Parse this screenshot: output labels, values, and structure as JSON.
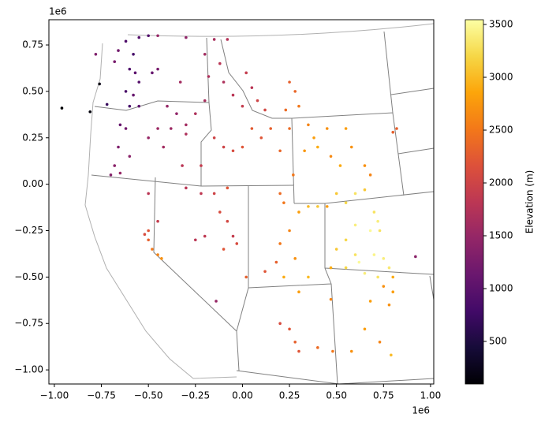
{
  "chart_data": {
    "type": "scatter",
    "xlim": [
      -1.029,
      1.017
    ],
    "ylim": [
      -1.076,
      0.886
    ],
    "xticks": [
      {
        "value": -1.0,
        "label": "−1.00"
      },
      {
        "value": -0.75,
        "label": "−0.75"
      },
      {
        "value": -0.5,
        "label": "−0.50"
      },
      {
        "value": -0.25,
        "label": "−0.25"
      },
      {
        "value": 0,
        "label": "0.00"
      },
      {
        "value": 0.25,
        "label": "0.25"
      },
      {
        "value": 0.5,
        "label": "0.50"
      },
      {
        "value": 0.75,
        "label": "0.75"
      },
      {
        "value": 1.0,
        "label": "1.00"
      }
    ],
    "yticks": [
      {
        "value": -1.0,
        "label": "−1.00"
      },
      {
        "value": -0.75,
        "label": "−0.75"
      },
      {
        "value": -0.5,
        "label": "−0.50"
      },
      {
        "value": -0.25,
        "label": "−0.25"
      },
      {
        "value": 0,
        "label": "0.00"
      },
      {
        "value": 0.25,
        "label": "0.25"
      },
      {
        "value": 0.5,
        "label": "0.50"
      },
      {
        "value": 0.75,
        "label": "0.75"
      }
    ],
    "x_offset_label": "1e6",
    "y_offset_label": "1e6",
    "colormap": "inferno",
    "clim": [
      97,
      3545
    ],
    "cticks": [
      500,
      1000,
      1500,
      2000,
      2500,
      3000,
      3500
    ],
    "colorbar_label": "Elevation (m)",
    "series": [
      {
        "x": [
          -0.96,
          -0.81,
          -0.76,
          -0.72,
          -0.62,
          -0.55,
          -0.5,
          -0.58,
          -0.6,
          -0.57,
          -0.55,
          -0.62,
          -0.58,
          -0.6,
          -0.55,
          -0.65,
          -0.62,
          -0.66,
          -0.6,
          -0.68,
          -0.65,
          -0.7,
          -0.78,
          -0.66,
          -0.68,
          -0.48,
          -0.45,
          -0.4,
          -0.35,
          -0.3,
          -0.38,
          -0.25,
          -0.2,
          -0.18,
          -0.2,
          -0.15,
          -0.08,
          -0.12,
          -0.1,
          -0.05,
          0.02,
          0.05,
          0.0,
          0.08,
          0.12,
          -0.45,
          -0.3,
          -0.33,
          -0.5,
          -0.45,
          -0.42,
          -0.3,
          -0.32,
          -0.22,
          -0.1,
          -0.15,
          -0.05,
          0.0,
          0.05,
          0.1,
          0.15,
          0.2,
          0.25,
          0.23,
          0.25,
          0.28,
          0.3,
          0.35,
          0.38,
          0.4,
          0.33,
          0.45,
          0.47,
          0.55,
          0.58,
          0.52,
          0.65,
          0.68,
          0.82,
          0.8,
          -0.5,
          -0.45,
          -0.3,
          -0.22,
          -0.15,
          -0.08,
          -0.12,
          -0.08,
          -0.2,
          -0.25,
          -0.05,
          -0.1,
          -0.03,
          0.02,
          0.12,
          0.18,
          0.2,
          0.25,
          0.22,
          0.2,
          0.27,
          0.3,
          0.35,
          0.4,
          0.28,
          0.22,
          0.3,
          0.35,
          -0.52,
          -0.5,
          -0.48,
          -0.45,
          -0.43,
          -0.5,
          -0.14,
          0.5,
          0.55,
          0.6,
          0.65,
          0.7,
          0.72,
          0.68,
          0.73,
          0.6,
          0.55,
          0.6,
          0.55,
          0.62,
          0.7,
          0.75,
          0.78,
          0.72,
          0.65,
          0.8,
          0.75,
          0.8,
          0.68,
          0.78,
          0.5,
          0.47,
          0.92,
          0.45,
          0.2,
          0.25,
          0.28,
          0.3,
          0.4,
          0.48,
          0.47,
          0.58,
          0.65,
          0.73,
          0.79
        ],
        "y": [
          0.41,
          0.39,
          0.54,
          0.43,
          0.77,
          0.79,
          0.8,
          0.7,
          0.62,
          0.6,
          0.55,
          0.5,
          0.48,
          0.42,
          0.42,
          0.32,
          0.3,
          0.2,
          0.15,
          0.1,
          0.06,
          0.05,
          0.7,
          0.72,
          0.66,
          0.6,
          0.62,
          0.42,
          0.38,
          0.32,
          0.3,
          0.38,
          0.45,
          0.58,
          0.7,
          0.78,
          0.78,
          0.65,
          0.55,
          0.48,
          0.6,
          0.52,
          0.42,
          0.45,
          0.4,
          0.8,
          0.79,
          0.55,
          0.25,
          0.3,
          0.2,
          0.27,
          0.1,
          0.1,
          0.2,
          0.25,
          0.18,
          0.2,
          0.3,
          0.25,
          0.3,
          0.18,
          0.3,
          0.4,
          0.55,
          0.5,
          0.42,
          0.32,
          0.25,
          0.2,
          0.18,
          0.3,
          0.15,
          0.3,
          0.2,
          0.1,
          0.1,
          0.05,
          0.3,
          0.28,
          -0.05,
          -0.2,
          -0.02,
          -0.05,
          -0.05,
          -0.02,
          -0.15,
          -0.2,
          -0.28,
          -0.3,
          -0.28,
          -0.35,
          -0.32,
          -0.5,
          -0.47,
          -0.42,
          -0.32,
          -0.25,
          -0.1,
          -0.05,
          0.05,
          -0.15,
          -0.12,
          -0.12,
          -0.4,
          -0.5,
          -0.58,
          -0.5,
          -0.27,
          -0.3,
          -0.35,
          -0.38,
          -0.4,
          -0.25,
          -0.63,
          -0.05,
          -0.1,
          -0.05,
          -0.03,
          -0.15,
          -0.2,
          -0.25,
          -0.25,
          -0.22,
          -0.3,
          -0.38,
          -0.45,
          -0.42,
          -0.38,
          -0.4,
          -0.45,
          -0.5,
          -0.48,
          -0.5,
          -0.55,
          -0.58,
          -0.63,
          -0.65,
          -0.35,
          -0.45,
          -0.39,
          -0.12,
          -0.75,
          -0.78,
          -0.85,
          -0.9,
          -0.88,
          -0.9,
          -0.62,
          -0.9,
          -0.78,
          -0.85,
          -0.92
        ],
        "values": [
          100,
          150,
          200,
          700,
          900,
          950,
          900,
          800,
          900,
          1000,
          950,
          850,
          1100,
          800,
          1000,
          1100,
          1200,
          1300,
          1400,
          1400,
          1500,
          1350,
          1300,
          1200,
          1250,
          1100,
          1250,
          1500,
          1450,
          1600,
          1550,
          1700,
          1650,
          1700,
          1600,
          1650,
          1750,
          1800,
          1700,
          1800,
          1900,
          1800,
          1900,
          2000,
          2050,
          1500,
          1450,
          1600,
          1500,
          1550,
          1600,
          1700,
          1800,
          1900,
          2000,
          2000,
          2100,
          2200,
          2250,
          2200,
          2300,
          2350,
          2400,
          2400,
          2300,
          2350,
          2500,
          2600,
          2800,
          2900,
          2750,
          2700,
          2650,
          2800,
          2700,
          2900,
          2700,
          2600,
          2300,
          2300,
          1800,
          1900,
          1800,
          1850,
          2000,
          2200,
          2100,
          2050,
          1850,
          1800,
          1900,
          2200,
          2100,
          2300,
          2200,
          2300,
          2500,
          2600,
          2500,
          2400,
          2500,
          2800,
          3000,
          3100,
          2700,
          2900,
          2800,
          3000,
          2100,
          2300,
          2500,
          2600,
          2700,
          2200,
          1500,
          3100,
          3200,
          3300,
          3100,
          3300,
          3400,
          3500,
          3300,
          3400,
          3200,
          3300,
          3200,
          3500,
          3450,
          3400,
          3350,
          3300,
          3400,
          2900,
          2700,
          2800,
          2800,
          2700,
          3100,
          2900,
          1400,
          2800,
          2100,
          2200,
          2300,
          2200,
          2400,
          2500,
          2600,
          2700,
          2800,
          2600,
          3000
        ]
      }
    ]
  }
}
